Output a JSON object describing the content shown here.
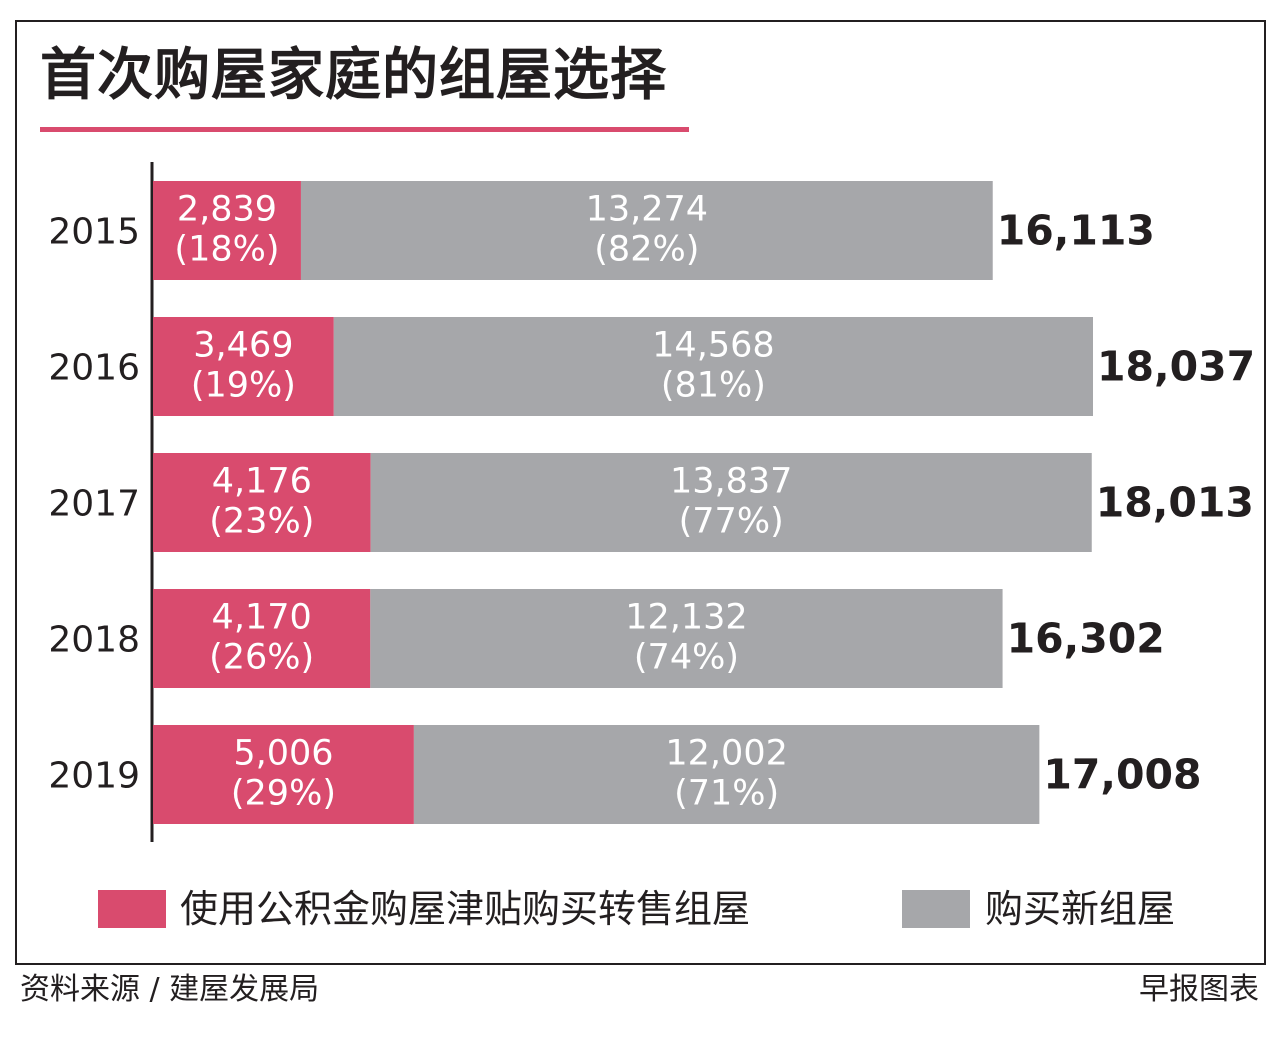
{
  "colors": {
    "accent": "#d94b6e",
    "gray": "#a6a7aa",
    "text": "#231f20"
  },
  "title": "首次购屋家庭的组屋选择",
  "chart_data": {
    "type": "bar",
    "orientation": "horizontal",
    "stacked": true,
    "categories": [
      "2015",
      "2016",
      "2017",
      "2018",
      "2019"
    ],
    "series": [
      {
        "name": "使用公积金购屋津贴购买转售组屋",
        "color": "#d94b6e",
        "values": [
          2839,
          3469,
          4176,
          4170,
          5006
        ],
        "labels": [
          "2,839",
          "3,469",
          "4,176",
          "4,170",
          "5,006"
        ],
        "pct_labels": [
          "(18%)",
          "(19%)",
          "(23%)",
          "(26%)",
          "(29%)"
        ]
      },
      {
        "name": "购买新组屋",
        "color": "#a6a7aa",
        "values": [
          13274,
          14568,
          13837,
          12132,
          12002
        ],
        "labels": [
          "13,274",
          "14,568",
          "13,837",
          "12,132",
          "12,002"
        ],
        "pct_labels": [
          "(82%)",
          "(81%)",
          "(77%)",
          "(74%)",
          "(71%)"
        ]
      }
    ],
    "totals": [
      16113,
      18037,
      18013,
      16302,
      17008
    ],
    "total_labels": [
      "16,113",
      "18,037",
      "18,013",
      "16,302",
      "17,008"
    ],
    "xlim": [
      0,
      18037
    ],
    "grid": false
  },
  "legend": {
    "items": [
      {
        "label": "使用公积金购屋津贴购买转售组屋",
        "color": "#d94b6e"
      },
      {
        "label": "购买新组屋",
        "color": "#a6a7aa"
      }
    ]
  },
  "footer": {
    "source": "资料来源 / 建屋发展局",
    "credit": "早报图表"
  }
}
